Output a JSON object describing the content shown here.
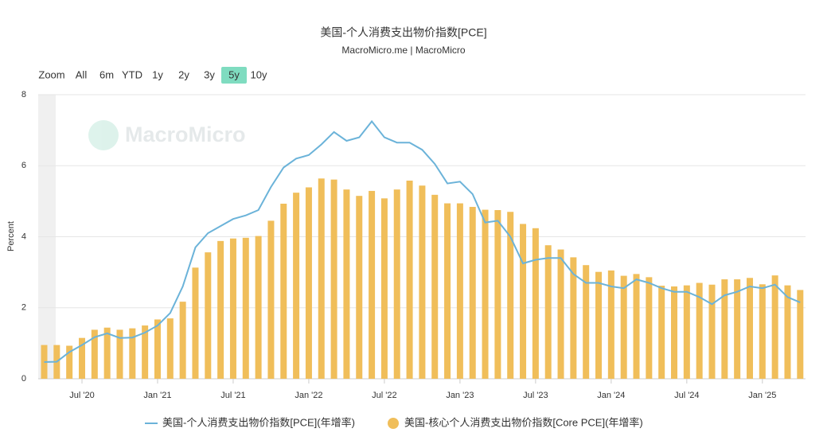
{
  "chart_data": {
    "type": "bar-line",
    "title": "美国-个人消费支出物价指数[PCE]",
    "subtitle": "MacroMicro.me | MacroMicro",
    "watermark": "MacroMicro",
    "range_buttons": [
      "Zoom",
      "All",
      "6m",
      "YTD",
      "1y",
      "2y",
      "3y",
      "5y",
      "10y"
    ],
    "active_range": "5y",
    "y_label": "Percent",
    "x": [
      "2020-04",
      "2020-05",
      "2020-06",
      "2020-07",
      "2020-08",
      "2020-09",
      "2020-10",
      "2020-11",
      "2020-12",
      "2021-01",
      "2021-02",
      "2021-03",
      "2021-04",
      "2021-05",
      "2021-06",
      "2021-07",
      "2021-08",
      "2021-09",
      "2021-10",
      "2021-11",
      "2021-12",
      "2022-01",
      "2022-02",
      "2022-03",
      "2022-04",
      "2022-05",
      "2022-06",
      "2022-07",
      "2022-08",
      "2022-09",
      "2022-10",
      "2022-11",
      "2022-12",
      "2023-01",
      "2023-02",
      "2023-03",
      "2023-04",
      "2023-05",
      "2023-06",
      "2023-07",
      "2023-08",
      "2023-09",
      "2023-10",
      "2023-11",
      "2023-12",
      "2024-01",
      "2024-02",
      "2024-03",
      "2024-04",
      "2024-05",
      "2024-06",
      "2024-07",
      "2024-08",
      "2024-09",
      "2024-10",
      "2024-11",
      "2024-12",
      "2025-01",
      "2025-02",
      "2025-03",
      "2025-04"
    ],
    "xticks": [
      {
        "value": "2020-07",
        "label": "Jul '20"
      },
      {
        "value": "2021-01",
        "label": "Jan '21"
      },
      {
        "value": "2021-07",
        "label": "Jul '21"
      },
      {
        "value": "2022-01",
        "label": "Jan '22"
      },
      {
        "value": "2022-07",
        "label": "Jul '22"
      },
      {
        "value": "2023-01",
        "label": "Jan '23"
      },
      {
        "value": "2023-07",
        "label": "Jul '23"
      },
      {
        "value": "2024-01",
        "label": "Jan '24"
      },
      {
        "value": "2024-07",
        "label": "Jul '24"
      },
      {
        "value": "2025-01",
        "label": "Jan '25"
      }
    ],
    "ylim": [
      0,
      8
    ],
    "yticks": [
      0,
      2,
      4,
      6,
      8
    ],
    "grid": true,
    "series": [
      {
        "name": "美国-个人消费支出物价指数[PCE](年增率)",
        "type": "line",
        "color": "#6bb3d9",
        "values": [
          0.47,
          0.48,
          0.75,
          0.95,
          1.17,
          1.28,
          1.15,
          1.16,
          1.3,
          1.5,
          1.85,
          2.6,
          3.7,
          4.1,
          4.3,
          4.5,
          4.6,
          4.75,
          5.4,
          5.95,
          6.2,
          6.3,
          6.6,
          6.95,
          6.7,
          6.8,
          7.25,
          6.8,
          6.65,
          6.65,
          6.45,
          6.05,
          5.5,
          5.55,
          5.2,
          4.4,
          4.45,
          4.0,
          3.25,
          3.35,
          3.4,
          3.4,
          2.95,
          2.7,
          2.7,
          2.6,
          2.55,
          2.8,
          2.7,
          2.55,
          2.45,
          2.45,
          2.3,
          2.1,
          2.35,
          2.45,
          2.6,
          2.55,
          2.65,
          2.3,
          2.15
        ]
      },
      {
        "name": "美国-核心个人消费支出物价指数[Core PCE](年增率)",
        "type": "bar",
        "color": "#f0be5a",
        "values": [
          0.95,
          0.95,
          0.93,
          1.15,
          1.38,
          1.44,
          1.38,
          1.42,
          1.5,
          1.67,
          1.7,
          2.17,
          3.13,
          3.56,
          3.88,
          3.95,
          3.97,
          4.02,
          4.45,
          4.93,
          5.24,
          5.39,
          5.64,
          5.61,
          5.33,
          5.15,
          5.29,
          5.08,
          5.33,
          5.58,
          5.44,
          5.18,
          4.94,
          4.94,
          4.84,
          4.76,
          4.75,
          4.7,
          4.36,
          4.24,
          3.76,
          3.64,
          3.42,
          3.2,
          3.01,
          3.05,
          2.9,
          2.95,
          2.86,
          2.62,
          2.6,
          2.63,
          2.7,
          2.65,
          2.8,
          2.8,
          2.84,
          2.66,
          2.91,
          2.63,
          2.5
        ]
      }
    ]
  }
}
